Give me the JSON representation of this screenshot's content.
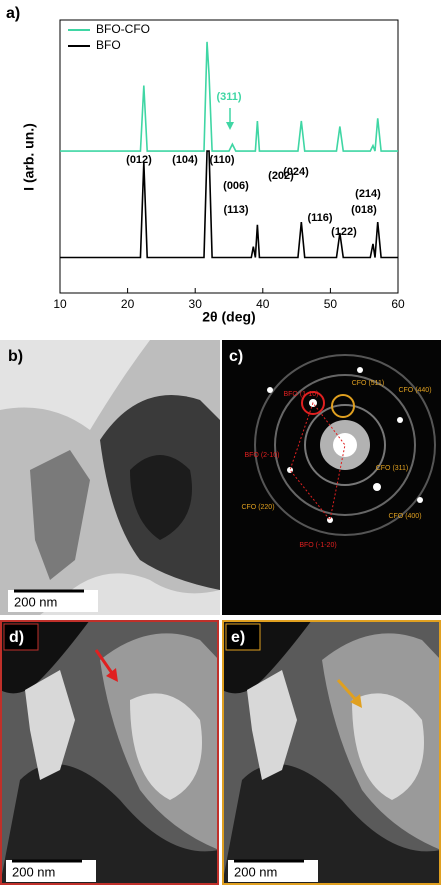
{
  "chart_data": {
    "type": "line",
    "panel_label": "a)",
    "xlabel": "2θ (deg)",
    "ylabel": "I (arb. un.)",
    "x": [
      10,
      21.9,
      22.4,
      22.9,
      31.3,
      31.75,
      32.05,
      32.5,
      35.0,
      35.5,
      36.0,
      38.3,
      38.6,
      38.9,
      39.2,
      39.5,
      39.9,
      45.2,
      45.7,
      46.2,
      50.9,
      51.4,
      51.9,
      55.9,
      56.3,
      56.6,
      57.0,
      57.5,
      60
    ],
    "series": [
      {
        "name": "BFO-CFO",
        "color": "#3fd6a4",
        "values": [
          52,
          52,
          76,
          52,
          52,
          92,
          80,
          52,
          52,
          54.5,
          52,
          52,
          52,
          52,
          63,
          52,
          52,
          52,
          63,
          52,
          52,
          61,
          52,
          52,
          54,
          52,
          64,
          52,
          52
        ]
      },
      {
        "name": "BFO",
        "color": "#000000",
        "values": [
          13,
          13,
          48,
          13,
          13,
          52,
          52,
          13,
          13,
          13,
          13,
          13,
          17,
          13,
          25,
          13,
          13,
          13,
          26,
          13,
          13,
          22,
          13,
          13,
          18,
          13,
          26,
          13,
          13
        ]
      }
    ],
    "xlim": [
      10,
      60
    ],
    "xticks": [
      10,
      20,
      30,
      40,
      50,
      60
    ],
    "ylim": [
      0,
      100
    ],
    "legend": "top-left",
    "annotations": [
      "(311)",
      "(012)",
      "(104)",
      "(110)",
      "(006)",
      "(113)",
      "(202)",
      "(024)",
      "(116)",
      "(122)",
      "(018)",
      "(214)"
    ]
  },
  "micrographs": {
    "b": {
      "label": "b)",
      "scale": "200 nm"
    },
    "c": {
      "label": "c)",
      "spots": [
        "BFO (1-10)",
        "BFO (2-10)",
        "BFO (-1-20)",
        "CFO (511)",
        "CFO (440)",
        "CFO (311)",
        "CFO (220)",
        "CFO (400)"
      ]
    },
    "d": {
      "label": "d)",
      "scale": "200 nm"
    },
    "e": {
      "label": "e)",
      "scale": "200 nm"
    }
  }
}
